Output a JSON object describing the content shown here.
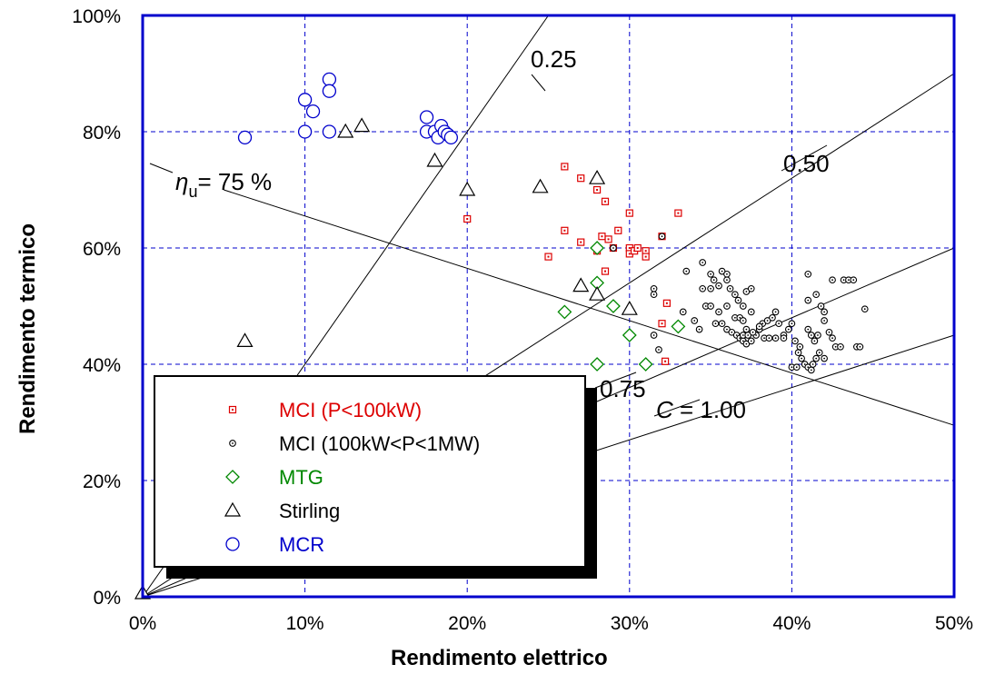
{
  "chart_data": {
    "type": "scatter",
    "title": "",
    "xlabel": "Rendimento elettrico",
    "ylabel": "Rendimento termico",
    "xlim": [
      0,
      0.5
    ],
    "ylim": [
      0,
      1.0
    ],
    "x_ticks": [
      0,
      0.1,
      0.2,
      0.3,
      0.4,
      0.5
    ],
    "x_tick_labels": [
      "0%",
      "10%",
      "20%",
      "30%",
      "40%",
      "50%"
    ],
    "y_ticks": [
      0,
      0.2,
      0.4,
      0.6,
      0.8,
      1.0
    ],
    "y_tick_labels": [
      "0%",
      "20%",
      "40%",
      "60%",
      "80%",
      "100%"
    ],
    "grid": true,
    "legend_position": "bottom-left",
    "colors": {
      "frame": "#0000cc",
      "grid": "#0000cc",
      "MCI_small": "#dd0000",
      "MCI_large": "#000000",
      "MTG": "#008800",
      "Stirling": "#000000",
      "MCR": "#0000cc"
    },
    "series": [
      {
        "name": "MCI (P<100kW)",
        "marker": "dotted-square",
        "color": "#dd0000",
        "points": [
          [
            0.26,
            0.74
          ],
          [
            0.27,
            0.72
          ],
          [
            0.28,
            0.7
          ],
          [
            0.285,
            0.68
          ],
          [
            0.26,
            0.63
          ],
          [
            0.27,
            0.61
          ],
          [
            0.25,
            0.585
          ],
          [
            0.28,
            0.595
          ],
          [
            0.283,
            0.62
          ],
          [
            0.287,
            0.615
          ],
          [
            0.29,
            0.6
          ],
          [
            0.293,
            0.63
          ],
          [
            0.3,
            0.66
          ],
          [
            0.3,
            0.6
          ],
          [
            0.3,
            0.59
          ],
          [
            0.303,
            0.595
          ],
          [
            0.305,
            0.6
          ],
          [
            0.31,
            0.595
          ],
          [
            0.31,
            0.585
          ],
          [
            0.32,
            0.62
          ],
          [
            0.33,
            0.66
          ],
          [
            0.285,
            0.56
          ],
          [
            0.323,
            0.505
          ],
          [
            0.32,
            0.47
          ],
          [
            0.322,
            0.405
          ],
          [
            0.2,
            0.65
          ]
        ]
      },
      {
        "name": "MCI (100kW<P<1MW)",
        "marker": "dotted-circle",
        "color": "#000000",
        "points": [
          [
            0.32,
            0.62
          ],
          [
            0.29,
            0.6
          ],
          [
            0.315,
            0.53
          ],
          [
            0.315,
            0.52
          ],
          [
            0.315,
            0.45
          ],
          [
            0.318,
            0.425
          ],
          [
            0.333,
            0.49
          ],
          [
            0.335,
            0.56
          ],
          [
            0.345,
            0.575
          ],
          [
            0.35,
            0.555
          ],
          [
            0.352,
            0.545
          ],
          [
            0.355,
            0.535
          ],
          [
            0.357,
            0.56
          ],
          [
            0.36,
            0.555
          ],
          [
            0.36,
            0.545
          ],
          [
            0.362,
            0.53
          ],
          [
            0.365,
            0.52
          ],
          [
            0.367,
            0.51
          ],
          [
            0.37,
            0.5
          ],
          [
            0.372,
            0.525
          ],
          [
            0.375,
            0.53
          ],
          [
            0.375,
            0.49
          ],
          [
            0.345,
            0.53
          ],
          [
            0.35,
            0.53
          ],
          [
            0.347,
            0.5
          ],
          [
            0.35,
            0.5
          ],
          [
            0.353,
            0.47
          ],
          [
            0.357,
            0.47
          ],
          [
            0.36,
            0.46
          ],
          [
            0.363,
            0.455
          ],
          [
            0.366,
            0.45
          ],
          [
            0.368,
            0.445
          ],
          [
            0.37,
            0.44
          ],
          [
            0.372,
            0.435
          ],
          [
            0.375,
            0.44
          ],
          [
            0.378,
            0.45
          ],
          [
            0.38,
            0.46
          ],
          [
            0.382,
            0.47
          ],
          [
            0.385,
            0.475
          ],
          [
            0.388,
            0.48
          ],
          [
            0.39,
            0.49
          ],
          [
            0.392,
            0.47
          ],
          [
            0.395,
            0.45
          ],
          [
            0.398,
            0.46
          ],
          [
            0.4,
            0.47
          ],
          [
            0.402,
            0.44
          ],
          [
            0.404,
            0.42
          ],
          [
            0.406,
            0.41
          ],
          [
            0.408,
            0.4
          ],
          [
            0.41,
            0.395
          ],
          [
            0.412,
            0.39
          ],
          [
            0.413,
            0.4
          ],
          [
            0.415,
            0.41
          ],
          [
            0.417,
            0.42
          ],
          [
            0.4,
            0.395
          ],
          [
            0.403,
            0.395
          ],
          [
            0.41,
            0.555
          ],
          [
            0.415,
            0.52
          ],
          [
            0.418,
            0.5
          ],
          [
            0.42,
            0.49
          ],
          [
            0.42,
            0.475
          ],
          [
            0.423,
            0.455
          ],
          [
            0.425,
            0.445
          ],
          [
            0.427,
            0.43
          ],
          [
            0.43,
            0.43
          ],
          [
            0.432,
            0.545
          ],
          [
            0.435,
            0.545
          ],
          [
            0.438,
            0.545
          ],
          [
            0.44,
            0.43
          ],
          [
            0.442,
            0.43
          ],
          [
            0.445,
            0.495
          ],
          [
            0.41,
            0.46
          ],
          [
            0.412,
            0.45
          ],
          [
            0.414,
            0.44
          ],
          [
            0.416,
            0.45
          ],
          [
            0.37,
            0.45
          ],
          [
            0.373,
            0.45
          ],
          [
            0.376,
            0.455
          ],
          [
            0.38,
            0.465
          ],
          [
            0.383,
            0.445
          ],
          [
            0.386,
            0.445
          ],
          [
            0.365,
            0.48
          ],
          [
            0.368,
            0.48
          ],
          [
            0.37,
            0.475
          ],
          [
            0.372,
            0.46
          ],
          [
            0.39,
            0.445
          ],
          [
            0.395,
            0.445
          ],
          [
            0.41,
            0.51
          ],
          [
            0.405,
            0.43
          ],
          [
            0.42,
            0.41
          ],
          [
            0.425,
            0.545
          ],
          [
            0.36,
            0.5
          ],
          [
            0.355,
            0.49
          ],
          [
            0.34,
            0.475
          ],
          [
            0.343,
            0.46
          ]
        ]
      },
      {
        "name": "MTG",
        "marker": "diamond",
        "color": "#008800",
        "points": [
          [
            0.28,
            0.6
          ],
          [
            0.28,
            0.54
          ],
          [
            0.26,
            0.49
          ],
          [
            0.29,
            0.5
          ],
          [
            0.3,
            0.45
          ],
          [
            0.33,
            0.465
          ],
          [
            0.28,
            0.4
          ],
          [
            0.31,
            0.4
          ]
        ]
      },
      {
        "name": "Stirling",
        "marker": "triangle",
        "color": "#000000",
        "points": [
          [
            0.125,
            0.8
          ],
          [
            0.135,
            0.81
          ],
          [
            0.18,
            0.75
          ],
          [
            0.28,
            0.72
          ],
          [
            0.2,
            0.7
          ],
          [
            0.245,
            0.705
          ],
          [
            0.27,
            0.535
          ],
          [
            0.28,
            0.52
          ],
          [
            0.3,
            0.495
          ],
          [
            0.063,
            0.44
          ],
          [
            0.0,
            0.0
          ]
        ]
      },
      {
        "name": "MCR",
        "marker": "circle",
        "color": "#0000cc",
        "points": [
          [
            0.063,
            0.79
          ],
          [
            0.1,
            0.855
          ],
          [
            0.1,
            0.8
          ],
          [
            0.105,
            0.835
          ],
          [
            0.115,
            0.89
          ],
          [
            0.115,
            0.87
          ],
          [
            0.115,
            0.8
          ],
          [
            0.175,
            0.825
          ],
          [
            0.175,
            0.8
          ],
          [
            0.18,
            0.8
          ],
          [
            0.182,
            0.79
          ],
          [
            0.184,
            0.81
          ],
          [
            0.186,
            0.8
          ],
          [
            0.188,
            0.795
          ],
          [
            0.19,
            0.79
          ]
        ]
      }
    ],
    "reference_lines": [
      {
        "label": "η_u= 75 %",
        "kind": "total-efficiency",
        "from": [
          0.05,
          0.7
        ],
        "to": [
          0.5,
          0.295
        ]
      },
      {
        "label": "0.25",
        "kind": "C-ratio",
        "slope": 4,
        "from": [
          0.0,
          0.0
        ],
        "to": [
          0.25,
          1.0
        ]
      },
      {
        "label": "0.50",
        "kind": "C-ratio",
        "slope": 2,
        "from": [
          0.0,
          0.0
        ],
        "to": [
          0.5,
          0.9
        ]
      },
      {
        "label": "0.75",
        "kind": "C-ratio",
        "slope": 1.2,
        "from": [
          0.0,
          0.0
        ],
        "to": [
          0.5,
          0.6
        ]
      },
      {
        "label": "C = 1.00",
        "kind": "C-ratio",
        "slope": 0.9,
        "from": [
          0.0,
          0.0
        ],
        "to": [
          0.5,
          0.45
        ]
      }
    ],
    "annotations": {
      "c025": "0.25",
      "c050": "0.50",
      "c075": "0.75",
      "c_prefix": "C",
      "c100_suffix": " = 1.00",
      "eta_symbol": "η",
      "eta_subscript": "u",
      "eta_suffix": "= 75 %"
    }
  }
}
